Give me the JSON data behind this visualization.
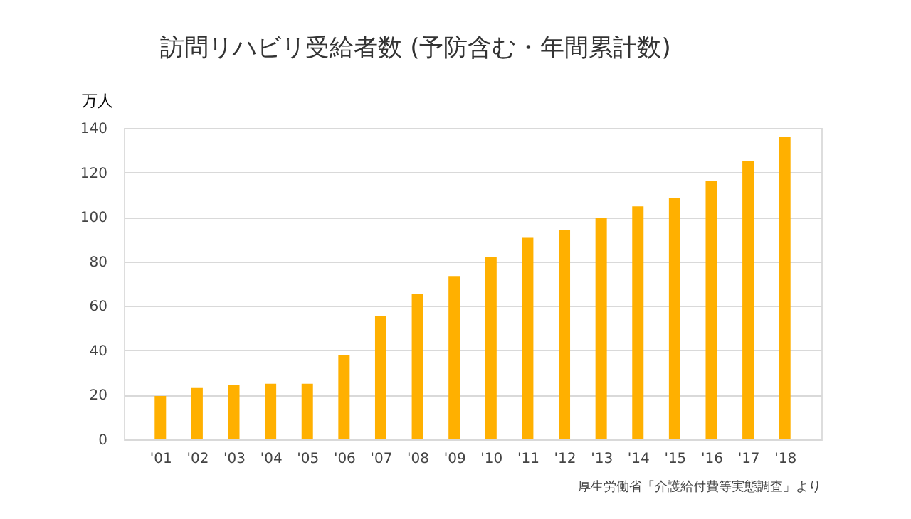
{
  "chart_data": {
    "type": "bar",
    "title": "訪問リハビリ受給者数 (予防含む・年間累計数)",
    "ylabel": "万人",
    "categories": [
      "'01",
      "'02",
      "'03",
      "'04",
      "'05",
      "'06",
      "'07",
      "'08",
      "'09",
      "'10",
      "'11",
      "'12",
      "'13",
      "'14",
      "'15",
      "'16",
      "'17",
      "'18"
    ],
    "values": [
      19.5,
      23.1,
      24.6,
      25,
      25,
      37.7,
      55.4,
      65.3,
      73.4,
      82.1,
      90.6,
      94.2,
      99.7,
      104.8,
      108.6,
      116,
      125.1,
      136
    ],
    "color": "#ffb000",
    "ylim": [
      0,
      140
    ],
    "yticks": [
      0,
      20,
      40,
      60,
      80,
      100,
      120,
      140
    ],
    "grid": "y",
    "annotations": [
      "厚生労働省「介護給付費等実態調査」より"
    ]
  }
}
